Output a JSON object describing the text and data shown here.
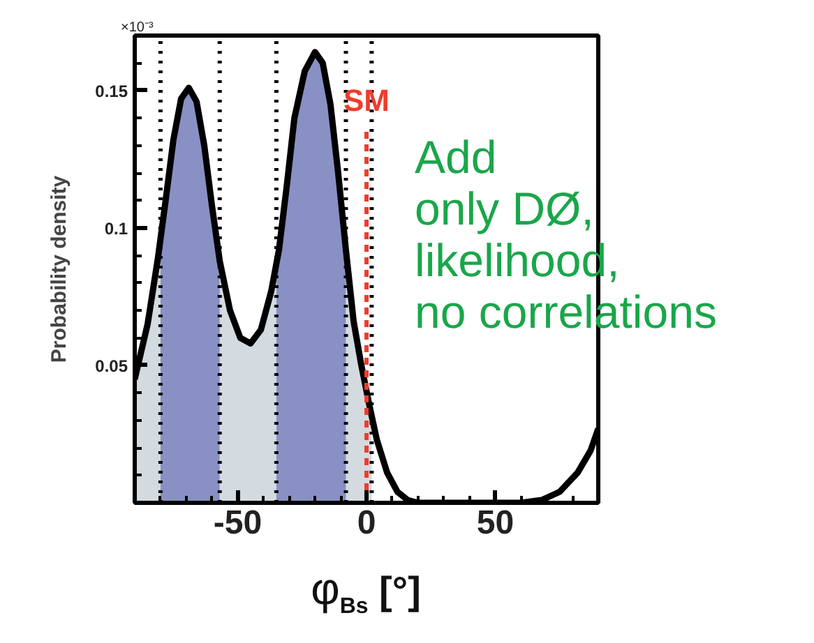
{
  "chart_data": {
    "type": "line",
    "xlabel": "φ$_{Bs}$ [°]",
    "ylabel": "Probability density",
    "xlim": [
      -90,
      90
    ],
    "ylim": [
      0,
      0.17
    ],
    "xticks": [
      -50,
      0,
      50
    ],
    "yticks": [
      0.05,
      0.1,
      0.15
    ],
    "grid": false,
    "series": [
      {
        "type": "area",
        "color": "#d3dbe0",
        "x": [
          -90,
          -85,
          -81,
          -80
        ],
        "values": [
          0.045,
          0.065,
          0.089,
          0.095
        ]
      },
      {
        "type": "area",
        "color": "#d3dbe0",
        "x": [
          -57,
          -53,
          -49,
          -45,
          -41,
          -37,
          -35
        ],
        "values": [
          0.088,
          0.07,
          0.06,
          0.058,
          0.063,
          0.077,
          0.086
        ]
      },
      {
        "type": "area",
        "color": "#d3dbe0",
        "x": [
          -8,
          -5,
          -2,
          1,
          2
        ],
        "values": [
          0.092,
          0.066,
          0.05,
          0.036,
          0.032
        ]
      },
      {
        "type": "area",
        "color": "#8890c4",
        "x": [
          -80,
          -78,
          -75,
          -72,
          -69,
          -66,
          -63,
          -60,
          -57
        ],
        "values": [
          0.095,
          0.11,
          0.132,
          0.147,
          0.151,
          0.146,
          0.13,
          0.108,
          0.088
        ]
      },
      {
        "type": "area",
        "color": "#8890c4",
        "x": [
          -35,
          -34,
          -31,
          -28,
          -24,
          -20,
          -17,
          -14,
          -11,
          -8
        ],
        "values": [
          0.086,
          0.092,
          0.115,
          0.14,
          0.157,
          0.164,
          0.16,
          0.145,
          0.12,
          0.092
        ]
      },
      {
        "color": "#000000",
        "x": [
          -90,
          -85,
          -81,
          -78,
          -75,
          -72,
          -69,
          -66,
          -63,
          -60,
          -57,
          -53,
          -49,
          -45,
          -41,
          -37,
          -34,
          -31,
          -28,
          -24,
          -20,
          -17,
          -14,
          -11,
          -8,
          -5,
          -2,
          1,
          4,
          8,
          12,
          16,
          20,
          30,
          45,
          60,
          68,
          75,
          82,
          87,
          90
        ],
        "values": [
          0.045,
          0.065,
          0.089,
          0.11,
          0.132,
          0.147,
          0.151,
          0.146,
          0.13,
          0.108,
          0.088,
          0.07,
          0.06,
          0.058,
          0.063,
          0.077,
          0.092,
          0.115,
          0.14,
          0.157,
          0.164,
          0.16,
          0.145,
          0.12,
          0.092,
          0.066,
          0.05,
          0.036,
          0.023,
          0.011,
          0.004,
          0.001,
          0.0,
          0.0,
          0.0,
          0.0,
          0.001,
          0.004,
          0.011,
          0.019,
          0.027
        ]
      }
    ],
    "ref_lines": [
      {
        "axis": "x",
        "value": -80,
        "label": null,
        "color": "#000000",
        "line_style": "dotted"
      },
      {
        "axis": "x",
        "value": -57,
        "label": null,
        "color": "#000000",
        "line_style": "dotted"
      },
      {
        "axis": "x",
        "value": -35,
        "label": null,
        "color": "#000000",
        "line_style": "dotted"
      },
      {
        "axis": "x",
        "value": -8,
        "label": null,
        "color": "#000000",
        "line_style": "dotted"
      },
      {
        "axis": "x",
        "value": 2,
        "label": null,
        "color": "#000000",
        "line_style": "dotted"
      },
      {
        "axis": "x",
        "value": 0,
        "label": "SM",
        "color": "#f03c2c",
        "line_style": "dashed"
      }
    ],
    "annotations": [
      "×10⁻³",
      "Add\nonly DØ,\nlikelihood,\nno correlations"
    ]
  }
}
